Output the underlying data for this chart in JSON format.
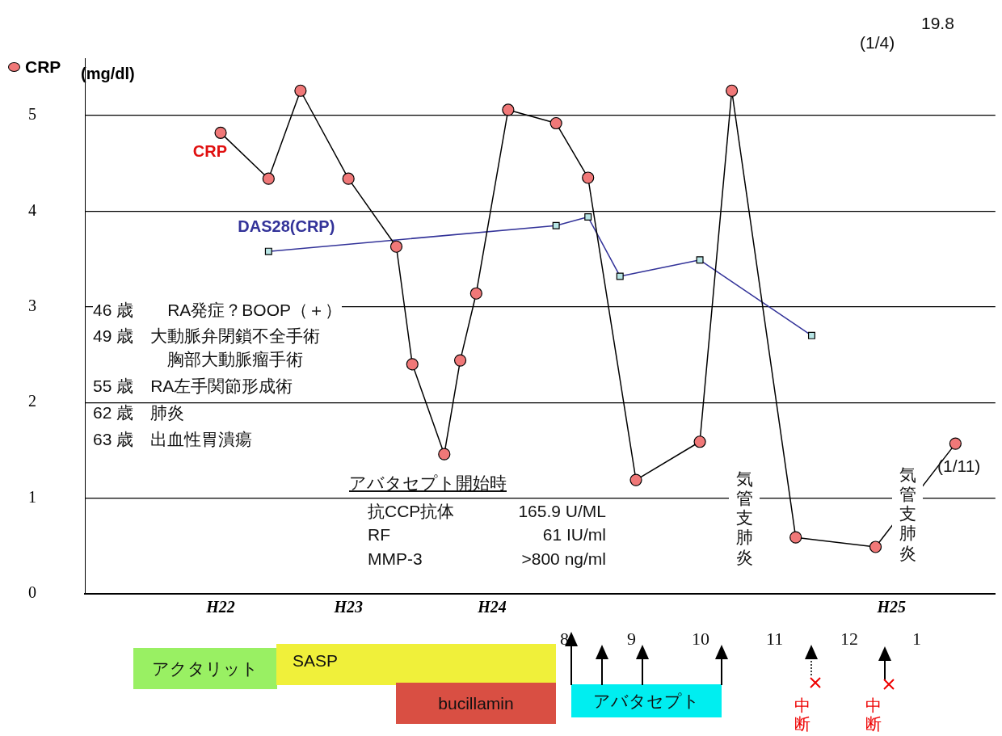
{
  "chart_data": {
    "type": "line",
    "ylabel": "(mg/dl)",
    "categories": [
      null,
      null,
      null,
      null,
      null,
      null,
      null,
      null,
      "H22",
      null,
      null,
      null,
      null,
      null,
      null,
      null,
      "H23",
      null,
      null,
      null,
      null,
      null,
      null,
      null,
      null,
      "H24",
      null,
      null,
      null,
      null,
      null,
      null,
      null,
      null,
      null,
      null,
      null,
      null,
      null,
      null,
      null,
      null,
      null,
      null,
      null,
      null,
      null,
      null,
      null,
      null,
      "H25",
      null,
      null,
      null,
      null,
      null,
      null
    ],
    "series": [
      {
        "name": "CRP",
        "color": "#f07878",
        "marker": "circle",
        "values": [
          null,
          null,
          null,
          null,
          null,
          null,
          null,
          null,
          4.82,
          null,
          null,
          4.34,
          null,
          5.26,
          null,
          null,
          4.34,
          null,
          null,
          3.63,
          2.4,
          null,
          1.46,
          2.44,
          3.14,
          null,
          5.06,
          null,
          null,
          4.92,
          null,
          4.35,
          null,
          null,
          1.19,
          null,
          null,
          null,
          1.59,
          null,
          5.26,
          null,
          null,
          null,
          0.59,
          null,
          null,
          null,
          null,
          0.49,
          null,
          null,
          null,
          null,
          1.57,
          null,
          null
        ]
      },
      {
        "name": "DAS28(CRP)",
        "color": "#333399",
        "marker": "square",
        "values": [
          null,
          null,
          null,
          null,
          null,
          null,
          null,
          null,
          null,
          null,
          null,
          3.58,
          null,
          null,
          null,
          null,
          null,
          null,
          null,
          null,
          null,
          null,
          null,
          null,
          null,
          null,
          null,
          null,
          null,
          3.85,
          null,
          3.94,
          null,
          3.32,
          null,
          null,
          null,
          null,
          3.49,
          null,
          null,
          null,
          null,
          null,
          null,
          2.7,
          null,
          null,
          null,
          null,
          null,
          null,
          null,
          null,
          null,
          null,
          null
        ]
      }
    ],
    "ylim": [
      0,
      5.6
    ],
    "yticks": [
      0,
      1,
      2,
      3,
      4,
      5
    ],
    "grid": "y",
    "legend": "top left",
    "annotations": [
      "46 歳　　RA発症？BOOP（＋）",
      "49 歳　大動脈弁閉鎖不全手術",
      "胸部大動脈瘤手術",
      "55 歳　RA左手関節形成術",
      "62 歳　肺炎",
      "63 歳　出血性胃潰瘍",
      "アバタセプト開始時",
      "抗CCP抗体",
      "165.9 U/ML",
      "RF",
      "61 IU/ml",
      "MMP-3",
      ">800 ng/ml",
      "気管支肺炎",
      "気管支肺炎",
      "(1/4)",
      "19.8",
      "(1/11)",
      "8",
      "9",
      "10",
      "11",
      "12",
      "1",
      "アクタリット",
      "SASP",
      "bucillamin",
      "アバタセプト",
      "中断",
      "中断"
    ]
  }
}
